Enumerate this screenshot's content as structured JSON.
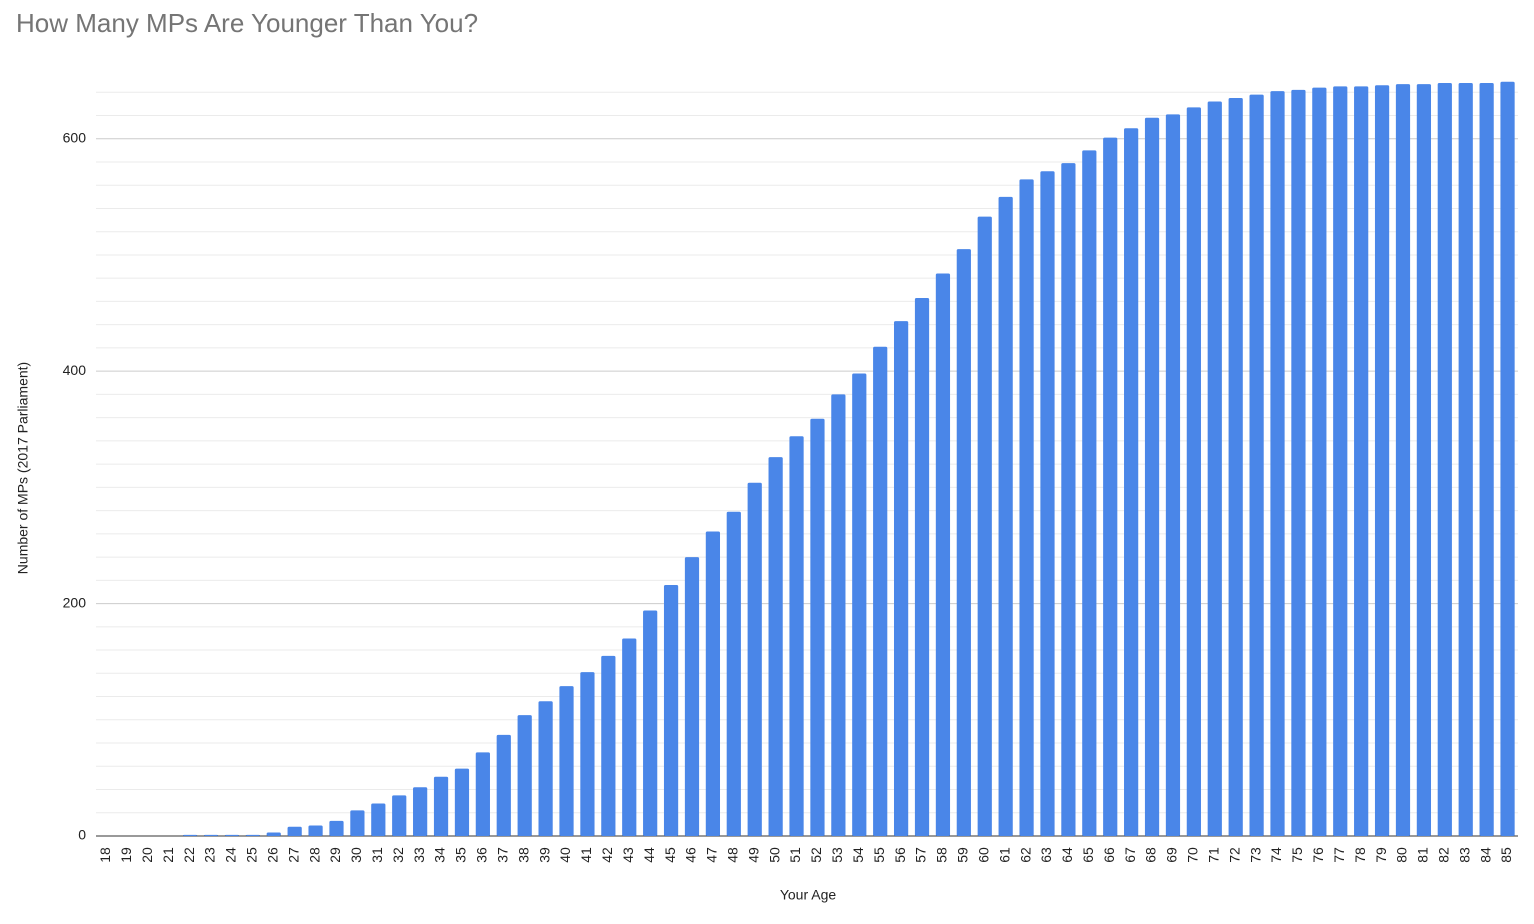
{
  "chart_data": {
    "type": "bar",
    "title": "How Many MPs Are Younger Than You?",
    "x_label": "Your Age",
    "y_label": "Number of MPs (2017 Parliament)",
    "categories": [
      "18",
      "19",
      "20",
      "21",
      "22",
      "23",
      "24",
      "25",
      "26",
      "27",
      "28",
      "29",
      "30",
      "31",
      "32",
      "33",
      "34",
      "35",
      "36",
      "37",
      "38",
      "39",
      "40",
      "41",
      "42",
      "43",
      "44",
      "45",
      "46",
      "47",
      "48",
      "49",
      "50",
      "51",
      "52",
      "53",
      "54",
      "55",
      "56",
      "57",
      "58",
      "59",
      "60",
      "61",
      "62",
      "63",
      "64",
      "65",
      "66",
      "67",
      "68",
      "69",
      "70",
      "71",
      "72",
      "73",
      "74",
      "75",
      "76",
      "77",
      "78",
      "79",
      "80",
      "81",
      "82",
      "83",
      "84",
      "85"
    ],
    "values": [
      0,
      0,
      0,
      0,
      1,
      1,
      1,
      1,
      3,
      8,
      9,
      13,
      22,
      28,
      35,
      42,
      51,
      58,
      72,
      87,
      104,
      116,
      129,
      141,
      155,
      170,
      194,
      216,
      240,
      262,
      279,
      304,
      326,
      344,
      359,
      380,
      398,
      421,
      443,
      463,
      484,
      505,
      533,
      550,
      565,
      572,
      579,
      590,
      601,
      609,
      618,
      621,
      627,
      632,
      635,
      638,
      641,
      642,
      644,
      645,
      645,
      646,
      647,
      647,
      648,
      648,
      648,
      649
    ],
    "color": "#4a86e8",
    "ylim": [
      0,
      660
    ],
    "yticks": [
      0,
      200,
      400,
      600
    ],
    "minor_yticks": [
      20,
      40,
      60,
      80,
      100,
      120,
      140,
      160,
      180,
      220,
      240,
      260,
      280,
      300,
      320,
      340,
      360,
      380,
      420,
      440,
      460,
      480,
      500,
      520,
      540,
      560,
      580,
      620,
      640
    ],
    "grid": true
  }
}
